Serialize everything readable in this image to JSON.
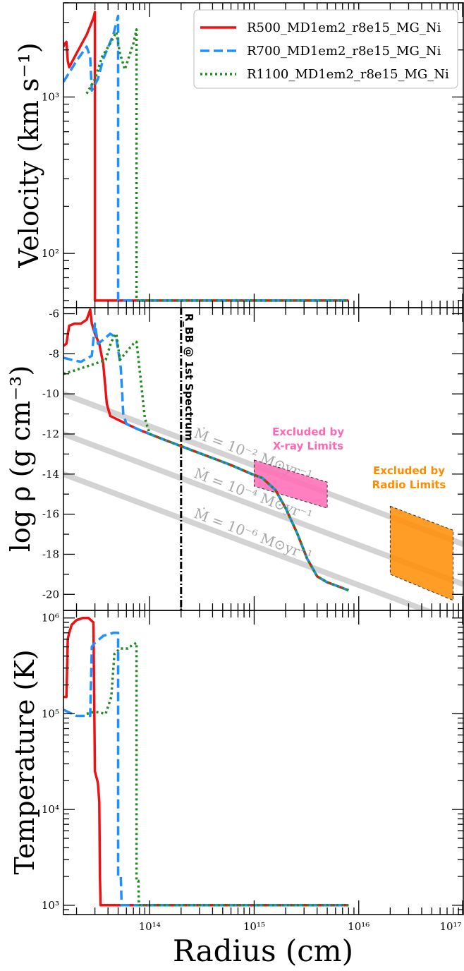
{
  "chart_data": [
    {
      "type": "line",
      "panel": "top",
      "ylabel": "Velocity (km s⁻¹)",
      "xscale": "log",
      "yscale": "log",
      "xlim": [
        15000000000000.0,
        1e+17
      ],
      "ylim": [
        45,
        4000
      ],
      "yticks": [
        {
          "value": 100,
          "label": "10²"
        },
        {
          "value": 1000,
          "label": "10³"
        }
      ],
      "legend": "top-right",
      "series": [
        {
          "name": "R500_MD1em2_r8e15_MG_Ni",
          "color": "#ee1111",
          "dash": "solid",
          "points": [
            [
              15000000000000.0,
              2100
            ],
            [
              15500000000000.0,
              2200
            ],
            [
              16000000000000.0,
              2250
            ],
            [
              16500000000000.0,
              1700
            ],
            [
              17000000000000.0,
              1550
            ],
            [
              20000000000000.0,
              1900
            ],
            [
              25000000000000.0,
              2500
            ],
            [
              29000000000000.0,
              3200
            ],
            [
              30000000000000.0,
              3500
            ],
            [
              30000000000000.0,
              50
            ],
            [
              8000000000000000.0,
              50
            ]
          ]
        },
        {
          "name": "R700_MD1em2_r8e15_MG_Ni",
          "color": "#1e90ff",
          "dash": "dashed",
          "points": [
            [
              15000000000000.0,
              1250
            ],
            [
              20000000000000.0,
              1700
            ],
            [
              25000000000000.0,
              2100
            ],
            [
              27000000000000.0,
              1800
            ],
            [
              28000000000000.0,
              1100
            ],
            [
              32000000000000.0,
              1300
            ],
            [
              36000000000000.0,
              1750
            ],
            [
              45000000000000.0,
              2500
            ],
            [
              50000000000000.0,
              3300
            ],
            [
              50000000000000.0,
              50
            ],
            [
              8000000000000000.0,
              50
            ]
          ]
        },
        {
          "name": "R1100_MD1em2_r8e15_MG_Ni",
          "color": "#228b22",
          "dash": "dotted",
          "points": [
            [
              25000000000000.0,
              1050
            ],
            [
              30000000000000.0,
              1300
            ],
            [
              35000000000000.0,
              1800
            ],
            [
              42000000000000.0,
              2200
            ],
            [
              48000000000000.0,
              2600
            ],
            [
              52000000000000.0,
              1900
            ],
            [
              58000000000000.0,
              1500
            ],
            [
              70000000000000.0,
              2200
            ],
            [
              75000000000000.0,
              2700
            ],
            [
              75000000000000.0,
              50
            ],
            [
              8000000000000000.0,
              50
            ]
          ]
        }
      ]
    },
    {
      "type": "line",
      "panel": "middle",
      "ylabel": "log ρ (g cm⁻³)",
      "xscale": "log",
      "xlim": [
        15000000000000.0,
        1e+17
      ],
      "ylim": [
        -20.8,
        -5.7
      ],
      "yticks": [
        -6,
        -8,
        -10,
        -12,
        -14,
        -16,
        -18,
        -20
      ],
      "series": [
        {
          "name": "R500_MD1em2_r8e15_MG_Ni",
          "color": "#ee1111",
          "dash": "solid",
          "points": [
            [
              15000000000000.0,
              -7.6
            ],
            [
              16000000000000.0,
              -7.5
            ],
            [
              17000000000000.0,
              -6.6
            ],
            [
              19000000000000.0,
              -6.5
            ],
            [
              22000000000000.0,
              -6.5
            ],
            [
              25000000000000.0,
              -6.3
            ],
            [
              27000000000000.0,
              -5.8
            ],
            [
              28000000000000.0,
              -6.5
            ],
            [
              30000000000000.0,
              -7.0
            ],
            [
              33000000000000.0,
              -7.5
            ],
            [
              36000000000000.0,
              -8.5
            ],
            [
              39000000000000.0,
              -10.5
            ],
            [
              42000000000000.0,
              -11.1
            ],
            [
              55000000000000.0,
              -11.4
            ],
            [
              80000000000000.0,
              -11.8
            ],
            [
              140000000000000.0,
              -12.3
            ],
            [
              250000000000000.0,
              -12.8
            ],
            [
              400000000000000.0,
              -13.2
            ],
            [
              600000000000000.0,
              -13.55
            ],
            [
              900000000000000.0,
              -13.95
            ],
            [
              1200000000000000.0,
              -14.2
            ],
            [
              1600000000000000.0,
              -14.8
            ],
            [
              2000000000000000.0,
              -15.7
            ],
            [
              2600000000000000.0,
              -17.0
            ],
            [
              3200000000000000.0,
              -18.2
            ],
            [
              4000000000000000.0,
              -19.1
            ],
            [
              5000000000000000.0,
              -19.4
            ],
            [
              6000000000000000.0,
              -19.55
            ],
            [
              8000000000000000.0,
              -19.8
            ]
          ]
        },
        {
          "name": "R700_MD1em2_r8e15_MG_Ni",
          "color": "#1e90ff",
          "dash": "dashed",
          "points": [
            [
              15000000000000.0,
              -8.2
            ],
            [
              18000000000000.0,
              -8.3
            ],
            [
              22000000000000.0,
              -8.4
            ],
            [
              28000000000000.0,
              -8.1
            ],
            [
              30000000000000.0,
              -6.5
            ],
            [
              32000000000000.0,
              -7.5
            ],
            [
              36000000000000.0,
              -7.3
            ],
            [
              42000000000000.0,
              -7.0
            ],
            [
              48000000000000.0,
              -7.2
            ],
            [
              53000000000000.0,
              -8.7
            ],
            [
              56000000000000.0,
              -11.0
            ],
            [
              60000000000000.0,
              -11.5
            ],
            [
              80000000000000.0,
              -11.8
            ],
            [
              140000000000000.0,
              -12.3
            ],
            [
              250000000000000.0,
              -12.8
            ],
            [
              400000000000000.0,
              -13.2
            ],
            [
              600000000000000.0,
              -13.55
            ],
            [
              900000000000000.0,
              -13.95
            ],
            [
              1200000000000000.0,
              -14.2
            ],
            [
              1600000000000000.0,
              -14.8
            ],
            [
              2000000000000000.0,
              -15.7
            ],
            [
              2600000000000000.0,
              -17.0
            ],
            [
              3200000000000000.0,
              -18.2
            ],
            [
              4000000000000000.0,
              -19.1
            ],
            [
              5000000000000000.0,
              -19.4
            ],
            [
              6000000000000000.0,
              -19.55
            ],
            [
              8000000000000000.0,
              -19.8
            ]
          ]
        },
        {
          "name": "R1100_MD1em2_r8e15_MG_Ni",
          "color": "#228b22",
          "dash": "dotted",
          "points": [
            [
              15000000000000.0,
              -9.0
            ],
            [
              20000000000000.0,
              -8.8
            ],
            [
              30000000000000.0,
              -8.5
            ],
            [
              38000000000000.0,
              -8.3
            ],
            [
              43000000000000.0,
              -7.4
            ],
            [
              48000000000000.0,
              -7.0
            ],
            [
              52000000000000.0,
              -8.3
            ],
            [
              58000000000000.0,
              -8.0
            ],
            [
              70000000000000.0,
              -7.5
            ],
            [
              75000000000000.0,
              -7.4
            ],
            [
              83000000000000.0,
              -9.5
            ],
            [
              90000000000000.0,
              -11.2
            ],
            [
              100000000000000.0,
              -12.0
            ],
            [
              140000000000000.0,
              -12.3
            ],
            [
              250000000000000.0,
              -12.8
            ],
            [
              400000000000000.0,
              -13.2
            ],
            [
              600000000000000.0,
              -13.55
            ],
            [
              900000000000000.0,
              -13.95
            ],
            [
              1200000000000000.0,
              -14.2
            ],
            [
              1600000000000000.0,
              -14.8
            ],
            [
              2000000000000000.0,
              -15.7
            ],
            [
              2600000000000000.0,
              -17.0
            ],
            [
              3200000000000000.0,
              -18.2
            ],
            [
              4000000000000000.0,
              -19.1
            ],
            [
              5000000000000000.0,
              -19.4
            ],
            [
              6000000000000000.0,
              -19.55
            ],
            [
              8000000000000000.0,
              -19.8
            ]
          ]
        }
      ],
      "mass_loss_lines": [
        {
          "label": "Ṁ = 10⁻² M⊙yr⁻¹",
          "points": [
            [
              15000000000000.0,
              -10.0
            ],
            [
              1e+17,
              -17.5
            ]
          ]
        },
        {
          "label": "Ṁ = 10⁻⁴ M⊙yr⁻¹",
          "points": [
            [
              15000000000000.0,
              -12.0
            ],
            [
              1e+17,
              -19.5
            ]
          ]
        },
        {
          "label": "Ṁ = 10⁻⁶ M⊙yr⁻¹",
          "points": [
            [
              15000000000000.0,
              -14.0
            ],
            [
              1e+17,
              -21.5
            ]
          ]
        }
      ],
      "vertical_line": {
        "x": 200000000000000.0,
        "label": "R_BB @ 1st Spectrum"
      },
      "regions": [
        {
          "label_line1": "Excluded by",
          "label_line2": "X-ray Limits",
          "color": "#ff69b4",
          "points": [
            [
              1000000000000000.0,
              -13.3
            ],
            [
              5000000000000000.0,
              -14.4
            ],
            [
              5000000000000000.0,
              -15.7
            ],
            [
              1000000000000000.0,
              -14.6
            ]
          ]
        },
        {
          "label_line1": "Excluded by",
          "label_line2": "Radio Limits",
          "color": "#ff8c00",
          "points": [
            [
              2e+16,
              -15.6
            ],
            [
              8e+16,
              -16.8
            ],
            [
              8e+16,
              -20.3
            ],
            [
              2e+16,
              -19.0
            ]
          ]
        }
      ]
    },
    {
      "type": "line",
      "panel": "bottom",
      "ylabel": "Temperature (K)",
      "xlabel": "Radius (cm)",
      "xscale": "log",
      "yscale": "log",
      "xlim": [
        15000000000000.0,
        1e+17
      ],
      "ylim": [
        800,
        1200000.0
      ],
      "yticks": [
        {
          "value": 1000,
          "label": "10³"
        },
        {
          "value": 10000,
          "label": "10⁴"
        },
        {
          "value": 100000,
          "label": "10⁵"
        },
        {
          "value": 1000000,
          "label": "10⁶"
        }
      ],
      "xticks": [
        {
          "value": 100000000000000.0,
          "label": "10¹⁴"
        },
        {
          "value": 1000000000000000.0,
          "label": "10¹⁵"
        },
        {
          "value": 1e+16,
          "label": "10¹⁶"
        },
        {
          "value": 1e+17,
          "label": "10¹⁷"
        }
      ],
      "series": [
        {
          "name": "R500_MD1em2_r8e15_MG_Ni",
          "color": "#ee1111",
          "dash": "solid",
          "points": [
            [
              15000000000000.0,
              150000
            ],
            [
              16000000000000.0,
              150000
            ],
            [
              16500000000000.0,
              600000
            ],
            [
              17000000000000.0,
              700000
            ],
            [
              18000000000000.0,
              850000
            ],
            [
              20000000000000.0,
              950000
            ],
            [
              23000000000000.0,
              1000000
            ],
            [
              26000000000000.0,
              1000000
            ],
            [
              29000000000000.0,
              900000
            ],
            [
              30000000000000.0,
              25000
            ],
            [
              32000000000000.0,
              19000
            ],
            [
              33000000000000.0,
              12000
            ],
            [
              33500000000000.0,
              2000
            ],
            [
              34000000000000.0,
              1000
            ],
            [
              8000000000000000.0,
              1000
            ]
          ]
        },
        {
          "name": "R700_MD1em2_r8e15_MG_Ni",
          "color": "#1e90ff",
          "dash": "dashed",
          "points": [
            [
              15000000000000.0,
              110000
            ],
            [
              20000000000000.0,
              95000
            ],
            [
              27000000000000.0,
              95000
            ],
            [
              28000000000000.0,
              500000
            ],
            [
              30000000000000.0,
              550000
            ],
            [
              36000000000000.0,
              650000
            ],
            [
              45000000000000.0,
              700000
            ],
            [
              50000000000000.0,
              700000
            ],
            [
              50000000000000.0,
              2000
            ],
            [
              53000000000000.0,
              2000
            ],
            [
              54000000000000.0,
              1000
            ],
            [
              8000000000000000.0,
              1000
            ]
          ]
        },
        {
          "name": "R1100_MD1em2_r8e15_MG_Ni",
          "color": "#228b22",
          "dash": "dotted",
          "points": [
            [
              25000000000000.0,
              100000
            ],
            [
              30000000000000.0,
              105000
            ],
            [
              38000000000000.0,
              100000
            ],
            [
              43000000000000.0,
              150000
            ],
            [
              46000000000000.0,
              420000
            ],
            [
              52000000000000.0,
              480000
            ],
            [
              62000000000000.0,
              480000
            ],
            [
              68000000000000.0,
              520000
            ],
            [
              75000000000000.0,
              550000
            ],
            [
              75000000000000.0,
              1800
            ],
            [
              78000000000000.0,
              1800
            ],
            [
              79000000000000.0,
              1000
            ],
            [
              8000000000000000.0,
              1000
            ]
          ]
        }
      ]
    }
  ]
}
